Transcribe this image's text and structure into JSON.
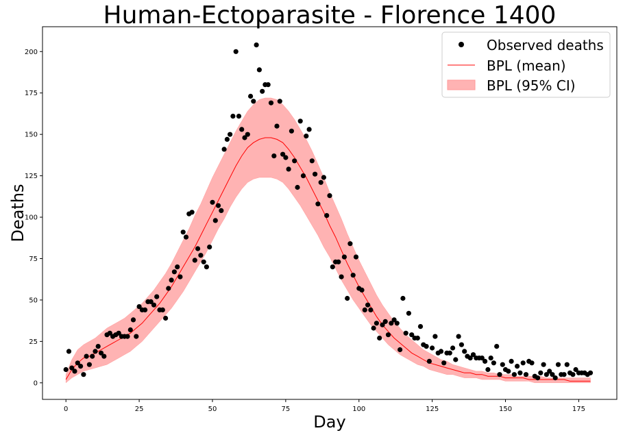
{
  "chart_data": {
    "type": "scatter",
    "title": "Human-Ectoparasite - Florence 1400",
    "xlabel": "Day",
    "ylabel": "Deaths",
    "xlim": [
      -8,
      188
    ],
    "ylim": [
      -10,
      215
    ],
    "xticks": [
      0,
      25,
      50,
      75,
      100,
      125,
      150,
      175
    ],
    "yticks": [
      0,
      25,
      50,
      75,
      100,
      125,
      150,
      175,
      200
    ],
    "grid": false,
    "legend_position": "top-right",
    "colors": {
      "observed": "#000000",
      "mean": "#ff0000",
      "ci": "#ff9999"
    },
    "legend": [
      {
        "label": "Observed deaths",
        "kind": "marker"
      },
      {
        "label": "BPL (mean)",
        "kind": "line"
      },
      {
        "label": "BPL (95% CI)",
        "kind": "patch"
      }
    ],
    "series": [
      {
        "name": "Observed deaths",
        "kind": "points",
        "x": [
          0,
          1,
          2,
          3,
          4,
          5,
          6,
          7,
          8,
          9,
          10,
          11,
          12,
          13,
          14,
          15,
          16,
          17,
          18,
          19,
          20,
          21,
          22,
          23,
          24,
          25,
          26,
          27,
          28,
          29,
          30,
          31,
          32,
          33,
          34,
          35,
          36,
          37,
          38,
          39,
          40,
          41,
          42,
          43,
          44,
          45,
          46,
          47,
          48,
          49,
          50,
          51,
          52,
          53,
          54,
          55,
          56,
          57,
          58,
          59,
          60,
          61,
          62,
          63,
          64,
          65,
          66,
          67,
          68,
          69,
          70,
          71,
          72,
          73,
          74,
          75,
          76,
          77,
          78,
          79,
          80,
          81,
          82,
          83,
          84,
          85,
          86,
          87,
          88,
          89,
          90,
          91,
          92,
          93,
          94,
          95,
          96,
          97,
          98,
          99,
          100,
          101,
          102,
          103,
          104,
          105,
          106,
          107,
          108,
          109,
          110,
          111,
          112,
          113,
          114,
          115,
          116,
          117,
          118,
          119,
          120,
          121,
          122,
          123,
          124,
          125,
          126,
          127,
          128,
          129,
          130,
          131,
          132,
          133,
          134,
          135,
          136,
          137,
          138,
          139,
          140,
          141,
          142,
          143,
          144,
          145,
          146,
          147,
          148,
          149,
          150,
          151,
          152,
          153,
          154,
          155,
          156,
          157,
          158,
          159,
          160,
          161,
          162,
          163,
          164,
          165,
          166,
          167,
          168,
          169,
          170,
          171,
          172,
          173,
          174,
          175,
          176,
          177,
          178,
          179
        ],
        "y": [
          8,
          19,
          9,
          7,
          12,
          10,
          5,
          16,
          11,
          16,
          19,
          22,
          18,
          16,
          29,
          30,
          28,
          29,
          30,
          28,
          28,
          28,
          32,
          38,
          28,
          46,
          44,
          44,
          49,
          49,
          47,
          52,
          44,
          44,
          39,
          57,
          62,
          67,
          70,
          64,
          91,
          88,
          102,
          103,
          74,
          81,
          77,
          73,
          70,
          82,
          109,
          98,
          107,
          104,
          141,
          147,
          150,
          161,
          200,
          161,
          153,
          148,
          150,
          173,
          170,
          204,
          189,
          176,
          180,
          180,
          169,
          137,
          155,
          170,
          138,
          136,
          129,
          152,
          134,
          118,
          158,
          125,
          149,
          153,
          134,
          126,
          108,
          121,
          124,
          101,
          113,
          70,
          73,
          73,
          64,
          76,
          51,
          84,
          65,
          76,
          57,
          56,
          44,
          47,
          44,
          33,
          36,
          27,
          35,
          37,
          29,
          36,
          38,
          36,
          20,
          51,
          30,
          42,
          29,
          27,
          27,
          34,
          23,
          22,
          13,
          21,
          28,
          18,
          19,
          12,
          18,
          18,
          21,
          14,
          28,
          23,
          19,
          16,
          15,
          17,
          15,
          15,
          15,
          13,
          8,
          15,
          12,
          22,
          5,
          11,
          8,
          7,
          13,
          5,
          10,
          6,
          12,
          5,
          13,
          12,
          4,
          3,
          6,
          11,
          5,
          7,
          5,
          3,
          11,
          5,
          5,
          11,
          6,
          5,
          8,
          6,
          6,
          6,
          5,
          6
        ]
      },
      {
        "name": "BPL (mean)",
        "kind": "line",
        "x": [
          0,
          2,
          4,
          6,
          8,
          10,
          12,
          14,
          16,
          18,
          20,
          22,
          24,
          26,
          28,
          30,
          32,
          34,
          36,
          38,
          40,
          42,
          44,
          46,
          48,
          50,
          52,
          54,
          56,
          58,
          60,
          62,
          64,
          66,
          68,
          70,
          72,
          74,
          76,
          78,
          80,
          82,
          84,
          86,
          88,
          90,
          92,
          94,
          96,
          98,
          100,
          102,
          104,
          106,
          108,
          110,
          112,
          114,
          116,
          118,
          120,
          122,
          124,
          126,
          128,
          130,
          132,
          134,
          136,
          138,
          140,
          142,
          144,
          146,
          148,
          150,
          152,
          154,
          156,
          158,
          160,
          162,
          164,
          166,
          168,
          170,
          172,
          174,
          176,
          178,
          179
        ],
        "y": [
          2,
          8,
          12,
          15,
          16,
          18,
          20,
          22,
          24,
          26,
          28,
          30,
          33,
          36,
          40,
          44,
          48,
          53,
          58,
          64,
          70,
          76,
          82,
          89,
          96,
          103,
          110,
          117,
          124,
          131,
          137,
          142,
          145,
          147,
          148,
          148,
          147,
          145,
          141,
          136,
          130,
          124,
          117,
          110,
          103,
          95,
          88,
          80,
          72,
          65,
          58,
          52,
          46,
          40,
          35,
          31,
          27,
          24,
          21,
          18,
          16,
          14,
          12,
          11,
          10,
          9,
          8,
          7,
          6,
          6,
          5,
          5,
          4,
          4,
          4,
          3,
          3,
          3,
          3,
          2,
          2,
          2,
          2,
          2,
          2,
          2,
          1,
          1,
          1,
          1,
          1
        ]
      },
      {
        "name": "BPL (95% CI)",
        "kind": "band",
        "x": [
          0,
          2,
          4,
          6,
          8,
          10,
          12,
          14,
          16,
          18,
          20,
          22,
          24,
          26,
          28,
          30,
          32,
          34,
          36,
          38,
          40,
          42,
          44,
          46,
          48,
          50,
          52,
          54,
          56,
          58,
          60,
          62,
          64,
          66,
          68,
          70,
          72,
          74,
          76,
          78,
          80,
          82,
          84,
          86,
          88,
          90,
          92,
          94,
          96,
          98,
          100,
          102,
          104,
          106,
          108,
          110,
          112,
          114,
          116,
          118,
          120,
          122,
          124,
          126,
          128,
          130,
          132,
          134,
          136,
          138,
          140,
          142,
          144,
          146,
          148,
          150,
          152,
          154,
          156,
          158,
          160,
          162,
          164,
          166,
          168,
          170,
          172,
          174,
          176,
          178,
          179
        ],
        "lower": [
          0,
          3,
          5,
          7,
          8,
          9,
          10,
          11,
          13,
          15,
          17,
          19,
          22,
          25,
          29,
          33,
          37,
          41,
          45,
          50,
          55,
          61,
          67,
          73,
          79,
          86,
          93,
          99,
          106,
          112,
          117,
          121,
          123,
          124,
          124,
          124,
          123,
          121,
          117,
          112,
          107,
          101,
          95,
          89,
          82,
          76,
          69,
          62,
          56,
          50,
          45,
          40,
          35,
          31,
          27,
          23,
          20,
          17,
          15,
          13,
          11,
          10,
          8,
          7,
          6,
          5,
          5,
          4,
          3,
          3,
          3,
          2,
          2,
          2,
          2,
          1,
          1,
          1,
          1,
          1,
          0,
          0,
          0,
          0,
          0,
          0,
          0,
          0,
          0,
          0,
          0
        ],
        "upper": [
          5,
          14,
          20,
          23,
          25,
          27,
          30,
          33,
          35,
          37,
          39,
          42,
          45,
          48,
          52,
          56,
          61,
          66,
          72,
          79,
          86,
          93,
          101,
          108,
          116,
          124,
          131,
          138,
          145,
          152,
          158,
          164,
          168,
          171,
          172,
          172,
          171,
          168,
          164,
          159,
          153,
          147,
          140,
          132,
          124,
          115,
          107,
          99,
          90,
          82,
          74,
          67,
          60,
          53,
          47,
          42,
          37,
          33,
          29,
          26,
          23,
          20,
          18,
          16,
          14,
          13,
          11,
          10,
          9,
          8,
          7,
          7,
          6,
          6,
          5,
          5,
          5,
          4,
          4,
          4,
          4,
          4,
          3,
          3,
          3,
          3,
          3,
          3,
          3,
          3,
          3
        ]
      }
    ]
  }
}
